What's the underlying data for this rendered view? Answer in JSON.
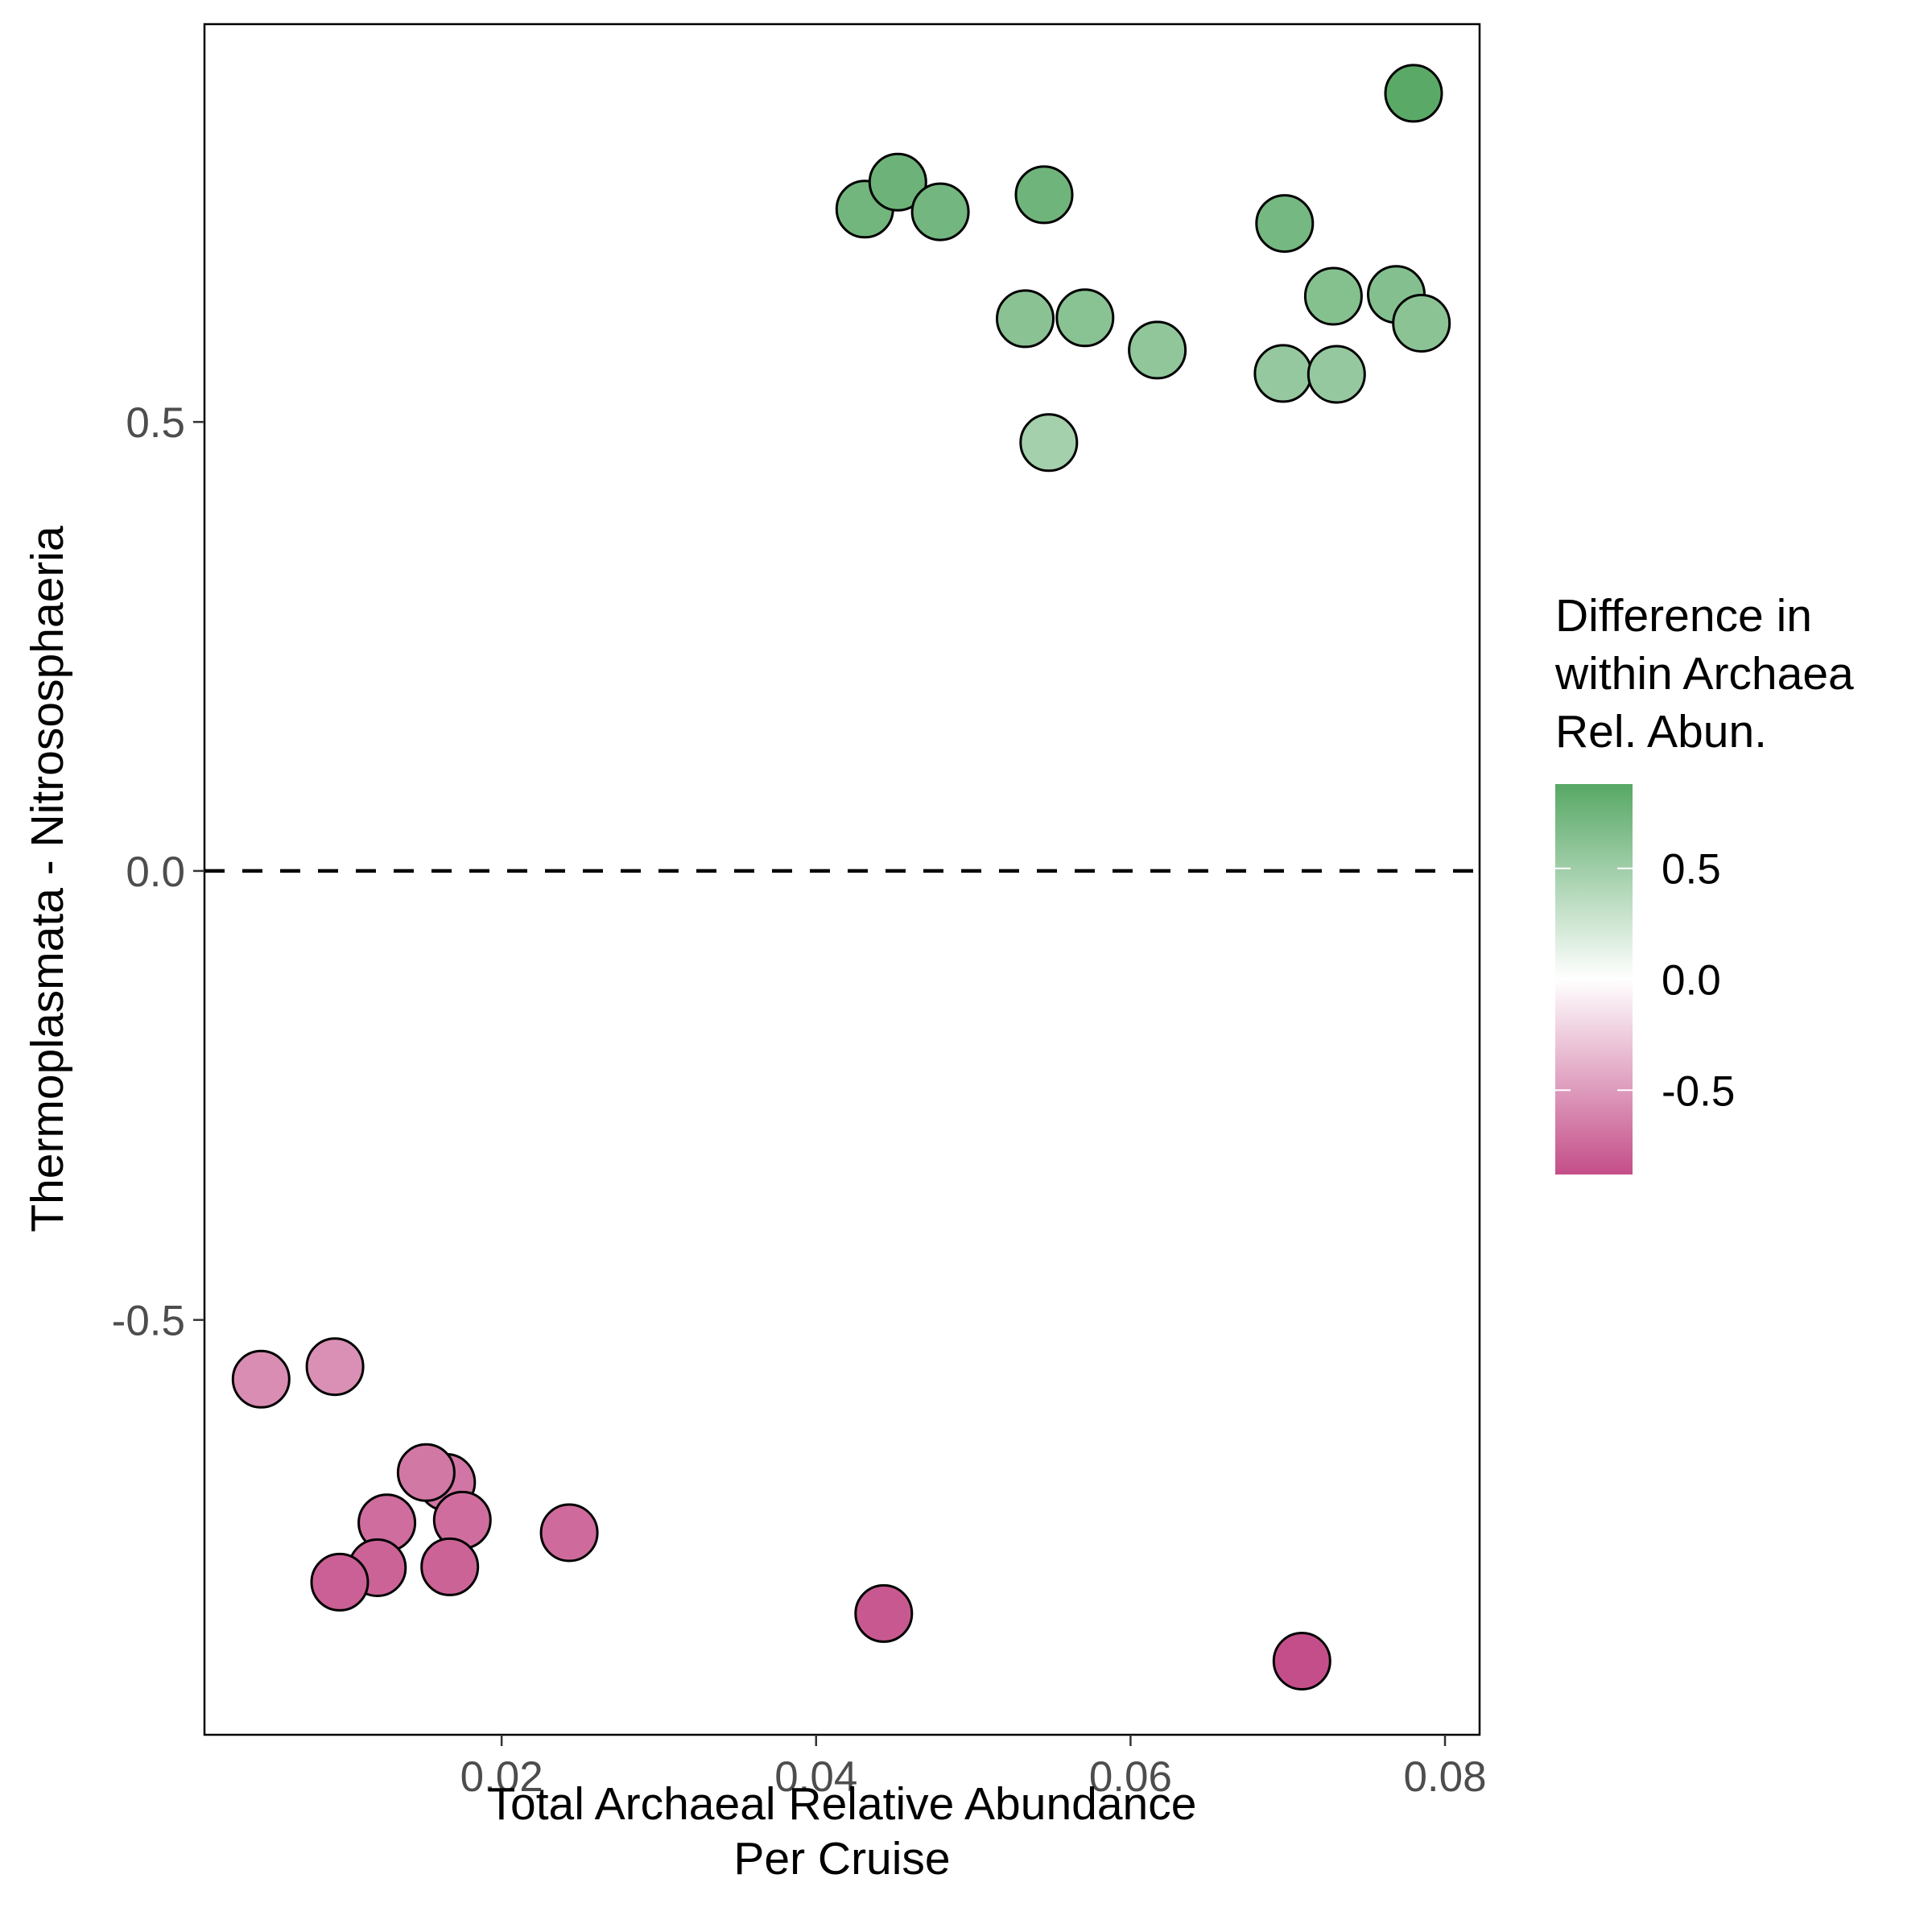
{
  "chart_data": {
    "type": "scatter",
    "title": "",
    "xlabel_lines": [
      "Total Archaeal Relative Abundance",
      "Per Cruise"
    ],
    "ylabel": "Thermoplasmata - Nitrososphaeria",
    "xlim": [
      0.0011,
      0.0822
    ],
    "ylim": [
      -0.962,
      0.943
    ],
    "xticks": [
      0.02,
      0.04,
      0.06,
      0.08
    ],
    "xtick_labels": [
      "0.02",
      "0.04",
      "0.06",
      "0.08"
    ],
    "yticks": [
      -0.5,
      0.0,
      0.5
    ],
    "ytick_labels": [
      "-0.5",
      "0.0",
      "0.5"
    ],
    "reference_line": {
      "y": 0.0,
      "style": "dashed",
      "color": "#000000"
    },
    "grid": false,
    "point_fill_encodes": "difference",
    "point_outline_color": "#000000",
    "points": [
      {
        "x": 0.0431,
        "y": 0.737,
        "difference": 0.737
      },
      {
        "x": 0.0452,
        "y": 0.767,
        "difference": 0.767
      },
      {
        "x": 0.0479,
        "y": 0.734,
        "difference": 0.734
      },
      {
        "x": 0.0545,
        "y": 0.753,
        "difference": 0.753
      },
      {
        "x": 0.078,
        "y": 0.866,
        "difference": 0.866
      },
      {
        "x": 0.0698,
        "y": 0.721,
        "difference": 0.721
      },
      {
        "x": 0.0729,
        "y": 0.64,
        "difference": 0.64
      },
      {
        "x": 0.0769,
        "y": 0.642,
        "difference": 0.642
      },
      {
        "x": 0.0785,
        "y": 0.61,
        "difference": 0.61
      },
      {
        "x": 0.0533,
        "y": 0.615,
        "difference": 0.615
      },
      {
        "x": 0.0571,
        "y": 0.616,
        "difference": 0.616
      },
      {
        "x": 0.0617,
        "y": 0.58,
        "difference": 0.58
      },
      {
        "x": 0.0697,
        "y": 0.554,
        "difference": 0.554
      },
      {
        "x": 0.0731,
        "y": 0.553,
        "difference": 0.553
      },
      {
        "x": 0.0548,
        "y": 0.477,
        "difference": 0.477
      },
      {
        "x": 0.0047,
        "y": -0.566,
        "difference": -0.566
      },
      {
        "x": 0.0094,
        "y": -0.552,
        "difference": -0.552
      },
      {
        "x": 0.0165,
        "y": -0.681,
        "difference": -0.681
      },
      {
        "x": 0.0152,
        "y": -0.67,
        "difference": -0.67
      },
      {
        "x": 0.0175,
        "y": -0.723,
        "difference": -0.723
      },
      {
        "x": 0.0127,
        "y": -0.726,
        "difference": -0.726
      },
      {
        "x": 0.0243,
        "y": -0.737,
        "difference": -0.737
      },
      {
        "x": 0.0121,
        "y": -0.776,
        "difference": -0.776
      },
      {
        "x": 0.0167,
        "y": -0.775,
        "difference": -0.775
      },
      {
        "x": 0.0097,
        "y": -0.792,
        "difference": -0.792
      },
      {
        "x": 0.0443,
        "y": -0.827,
        "difference": -0.827
      },
      {
        "x": 0.0709,
        "y": -0.88,
        "difference": -0.88
      }
    ],
    "legend": {
      "title_lines": [
        "Difference in",
        "within Archaea",
        "Rel. Abun."
      ],
      "placement": "right",
      "range": [
        -0.88,
        0.88
      ],
      "ticks": [
        0.5,
        0.0,
        -0.5
      ],
      "tick_labels": [
        "0.5",
        "0.0",
        "-0.5"
      ],
      "colors": {
        "low": "#c44e89",
        "mid": "#ffffff",
        "high": "#57a865"
      }
    }
  }
}
